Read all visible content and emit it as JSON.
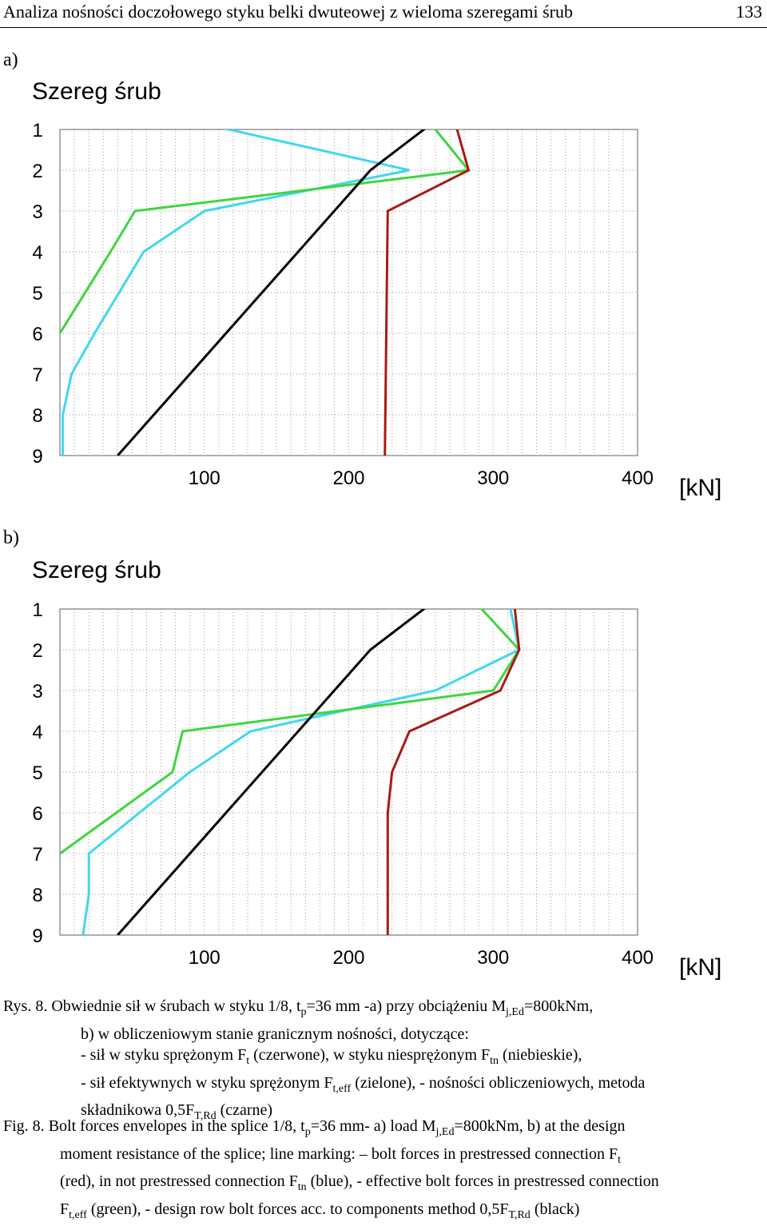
{
  "header": {
    "title": "Analiza nośności doczołowego styku belki dwuteowej z wieloma szeregami śrub",
    "page": "133"
  },
  "panels": [
    {
      "label": "a)",
      "axis_title": "Szereg śrub"
    },
    {
      "label": "b)",
      "axis_title": "Szereg śrub"
    }
  ],
  "colors": {
    "red": "#aa1a14",
    "blue": "#3fd8ee",
    "green": "#3ed63e",
    "black": "#000000"
  },
  "chart_data": [
    {
      "type": "line",
      "x_unit": "[kN]",
      "y_axis_title": "Szereg śrub",
      "y_categories": [
        "1",
        "2",
        "3",
        "4",
        "5",
        "6",
        "7",
        "8",
        "9"
      ],
      "x_ticks": [
        "100",
        "200",
        "300",
        "400"
      ],
      "xlim": [
        0,
        400
      ],
      "grid": true,
      "series": [
        {
          "color": "#3fd8ee",
          "points": [
            [
              117,
              1
            ],
            [
              242,
              2
            ],
            [
              100,
              3
            ],
            [
              58,
              4
            ],
            [
              24,
              6
            ],
            [
              8,
              7
            ],
            [
              2,
              8
            ],
            [
              2,
              9
            ]
          ]
        },
        {
          "color": "#3ed63e",
          "points": [
            [
              260,
              1
            ],
            [
              283,
              2
            ],
            [
              52,
              3
            ],
            [
              35,
              4
            ],
            [
              0,
              6
            ]
          ]
        },
        {
          "color": "#aa1a14",
          "points": [
            [
              275,
              1
            ],
            [
              283,
              2
            ],
            [
              227,
              3
            ],
            [
              225,
              9
            ]
          ]
        },
        {
          "color": "#000000",
          "points": [
            [
              252,
              1
            ],
            [
              215,
              2
            ],
            [
              40,
              9
            ]
          ]
        }
      ]
    },
    {
      "type": "line",
      "x_unit": "[kN]",
      "y_axis_title": "Szereg śrub",
      "y_categories": [
        "1",
        "2",
        "3",
        "4",
        "5",
        "6",
        "7",
        "8",
        "9"
      ],
      "x_ticks": [
        "100",
        "200",
        "300",
        "400"
      ],
      "xlim": [
        0,
        400
      ],
      "grid": true,
      "series": [
        {
          "color": "#3fd8ee",
          "points": [
            [
              312,
              1
            ],
            [
              318,
              2
            ],
            [
              260,
              3
            ],
            [
              132,
              4
            ],
            [
              90,
              5
            ],
            [
              55,
              6
            ],
            [
              20,
              7
            ],
            [
              20,
              8
            ],
            [
              16,
              9
            ]
          ]
        },
        {
          "color": "#3ed63e",
          "points": [
            [
              292,
              1
            ],
            [
              318,
              2
            ],
            [
              300,
              3
            ],
            [
              85,
              4
            ],
            [
              78,
              5
            ],
            [
              0,
              7
            ]
          ]
        },
        {
          "color": "#aa1a14",
          "points": [
            [
              315,
              1
            ],
            [
              318,
              2
            ],
            [
              305,
              3
            ],
            [
              242,
              4
            ],
            [
              230,
              5
            ],
            [
              227,
              6
            ],
            [
              227,
              9
            ]
          ]
        },
        {
          "color": "#000000",
          "points": [
            [
              252,
              1
            ],
            [
              215,
              2
            ],
            [
              40,
              9
            ]
          ]
        }
      ]
    }
  ],
  "caption_pl": {
    "prefix": "Rys. 8.",
    "l1a": "Obwiednie sił w śrubach w styku 1/8, t",
    "l1b": "p",
    "l1c": "=36 mm -a) przy obciążeniu M",
    "l1d": "j,Ed",
    "l1e": "=800kNm,",
    "l2": "b) w obliczeniowym stanie granicznym nośności, dotyczące:",
    "l3a": "- sił w styku sprężonym F",
    "l3b": "t",
    "l3c": " (czerwone), w styku niesprężonym F",
    "l3d": "tn",
    "l3e": " (niebieskie),",
    "l4a": "- sił efektywnych w styku sprężonym F",
    "l4b": "t,eff",
    "l4c": " (zielone), - nośności obliczeniowych, metoda",
    "l5a": "składnikowa 0,5F",
    "l5b": "T,Rd",
    "l5c": " (czarne)"
  },
  "caption_en": {
    "prefix": "Fig. 8.",
    "l1a": "Bolt forces envelopes in the splice 1/8, t",
    "l1b": "p",
    "l1c": "=36 mm- a) load M",
    "l1d": "j,Ed",
    "l1e": "=800kNm, b)  at the design",
    "l2a": "moment resistance of the splice; line marking: –  bolt forces in prestressed connection F",
    "l2b": "t",
    "l3a": "(red), in not prestressed connection F",
    "l3b": "tn",
    "l3c": " (blue), - effective bolt forces in prestressed connection",
    "l4a": "F",
    "l4b": "t,eff",
    "l4c": " (green), -  design row bolt forces acc. to components method 0,5F",
    "l4d": "T,Rd",
    "l4e": " (black)"
  }
}
